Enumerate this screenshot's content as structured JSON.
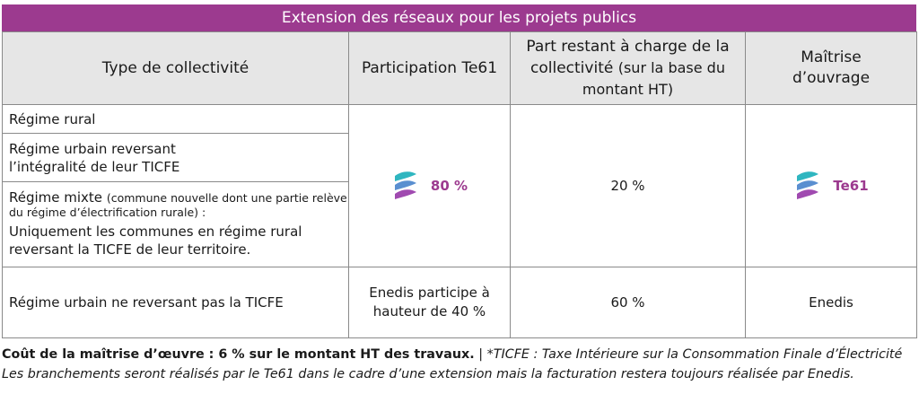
{
  "banner": {
    "title": "Extension des réseaux pour les projets publics"
  },
  "colors": {
    "accent": "#9c3a8f",
    "header_bg": "#e6e6e6",
    "logo_teal": "#2fb6c0"
  },
  "table": {
    "headers": {
      "type": "Type de collectivité",
      "participation": "Participation Te61",
      "part_restant_bold": "Part restant à charge de la collectivité",
      "part_restant_sub": "(sur la base du montant HT)",
      "maitrise": "Maîtrise d’ouvrage"
    },
    "rows": {
      "r1_label": "Régime rural",
      "r2_label": "Régime urbain reversant l’intégralité de leur TICFE",
      "r3_label_bold": "Régime mixte",
      "r3_label_small": "(commune nouvelle dont une partie relève du régime d’électrification rurale) :",
      "r3_label_tail": "Uniquement les communes en régime rural reversant la TICFE de leur territoire.",
      "group_participation": "80 %",
      "group_restant": "20 %",
      "group_maitrise": "Te61",
      "r4_label": "Régime urbain ne reversant pas la TICFE",
      "r4_participation": "Enedis participe à hauteur de 40 %",
      "r4_restant": "60 %",
      "r4_maitrise": "Enedis"
    },
    "logo_icon": "te61-logo-icon"
  },
  "footer": {
    "line1_bold": "Coût de la maîtrise d’œuvre : 6 % sur le montant HT des travaux.",
    "line1_sep": " | ",
    "line1_italic": "*TICFE : Taxe Intérieure sur la Consommation Finale d’Électricité",
    "line2_italic": "Les branchements seront réalisés par le Te61 dans le cadre d’une extension mais la facturation restera toujours réalisée par Enedis."
  }
}
